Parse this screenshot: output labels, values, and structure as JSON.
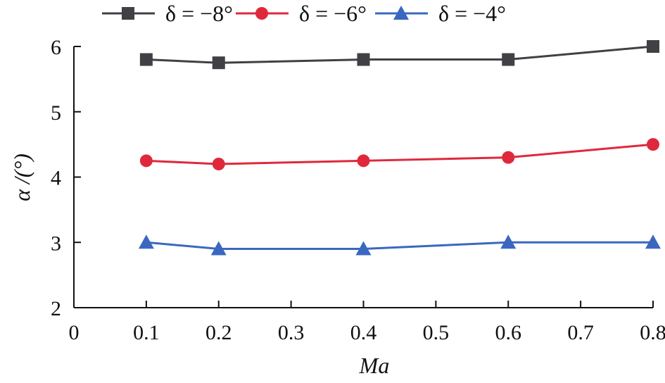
{
  "chart_data": {
    "type": "line",
    "title": "",
    "xlabel": "Ma",
    "ylabel": "α /(°)",
    "xlim": [
      0,
      0.8
    ],
    "ylim": [
      2,
      6
    ],
    "xticks": [
      "0",
      "0.1",
      "0.2",
      "0.3",
      "0.4",
      "0.5",
      "0.6",
      "0.7",
      "0.8"
    ],
    "xtick_values": [
      0,
      0.1,
      0.2,
      0.3,
      0.4,
      0.5,
      0.6,
      0.7,
      0.8
    ],
    "yticks": [
      "2",
      "3",
      "4",
      "5",
      "6"
    ],
    "ytick_values": [
      2,
      3,
      4,
      5,
      6
    ],
    "grid": false,
    "legend_position": "top-center",
    "x": [
      0.1,
      0.2,
      0.4,
      0.6,
      0.8
    ],
    "series": [
      {
        "name": "δ = −8°",
        "color": "#404045",
        "marker": "square",
        "values": [
          5.8,
          5.75,
          5.8,
          5.8,
          6.0
        ]
      },
      {
        "name": "δ = −6°",
        "color": "#e0283c",
        "marker": "circle",
        "values": [
          4.25,
          4.2,
          4.25,
          4.3,
          4.5
        ]
      },
      {
        "name": "δ = −4°",
        "color": "#3a68bf",
        "marker": "triangle",
        "values": [
          3.0,
          2.9,
          2.9,
          3.0,
          3.0
        ]
      }
    ]
  }
}
